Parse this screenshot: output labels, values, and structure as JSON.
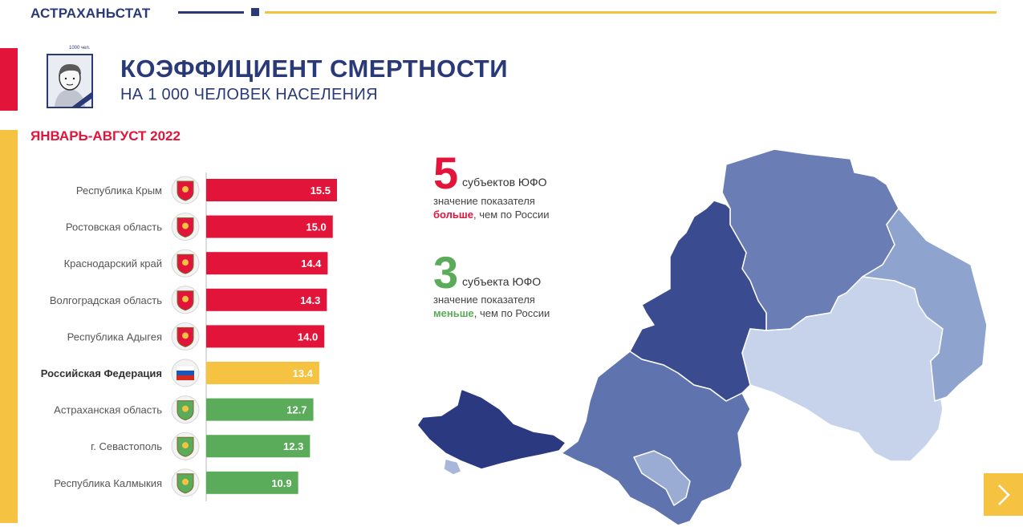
{
  "header": {
    "brand": "АСТРАХАНЬСТАТ"
  },
  "avatar": {
    "caption": "1000 чел."
  },
  "title": "КОЭФФИЦИЕНТ СМЕРТНОСТИ",
  "subtitle": "НА 1 000 ЧЕЛОВЕК НАСЕЛЕНИЯ",
  "period": "ЯНВАРЬ-АВГУСТ 2022",
  "colors": {
    "above": "#e3143a",
    "russia": "#f5c242",
    "below": "#5aab5a",
    "brand": "#2a3a78"
  },
  "chart_data": {
    "type": "bar",
    "orientation": "horizontal",
    "categories": [
      "Республика Крым",
      "Ростовская область",
      "Краснодарский край",
      "Волгоградская область",
      "Республика Адыгея",
      "Российская Федерация",
      "Астраханская область",
      "г. Севастополь",
      "Республика Калмыкия"
    ],
    "values": [
      15.5,
      15.0,
      14.4,
      14.3,
      14.0,
      13.4,
      12.7,
      12.3,
      10.9
    ],
    "value_labels": [
      "15.5",
      "15.0",
      "14.4",
      "14.3",
      "14.0",
      "13.4",
      "12.7",
      "12.3",
      "10.9"
    ],
    "groups": [
      "above",
      "above",
      "above",
      "above",
      "above",
      "russia",
      "below",
      "below",
      "below"
    ],
    "xlim": [
      0,
      15.5
    ]
  },
  "stats": {
    "above": {
      "count": "5",
      "head": "субъектов ЮФО",
      "line1": "значение показателя",
      "emph": "больше",
      "rest": ", чем по России"
    },
    "below": {
      "count": "3",
      "head": "субъекта ЮФО",
      "line1": "значение показателя",
      "emph": "меньше",
      "rest": ", чем по России"
    }
  },
  "nav": {
    "next_icon": "chevron-right-icon"
  }
}
